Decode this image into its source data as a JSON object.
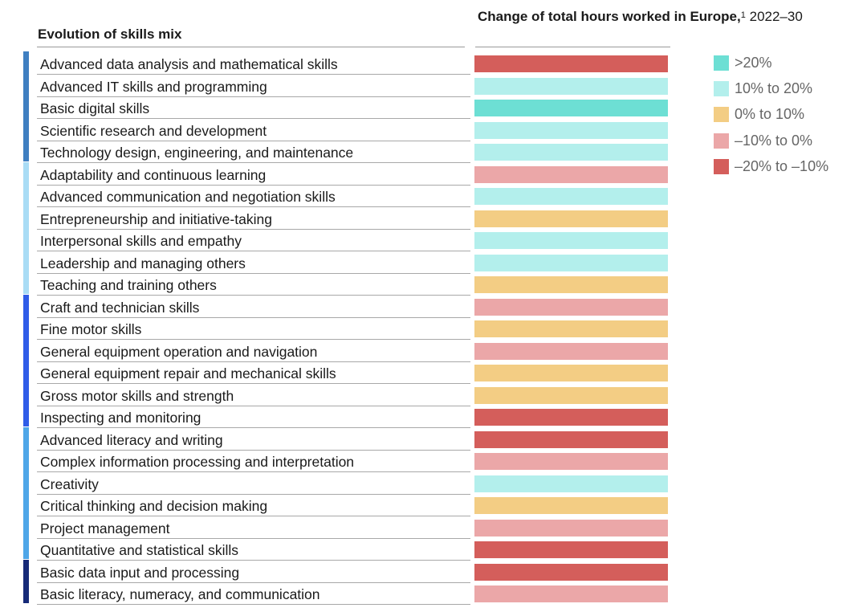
{
  "chart_data": {
    "type": "table",
    "column_headers": {
      "left": "Evolution of skills mix",
      "right_bold": "Change of total hours worked in Europe,",
      "right_footnote": "1",
      "right_period": "2022–30"
    },
    "legend": [
      {
        "key": "gt20",
        "label": ">20%",
        "color": "#6ddfd4"
      },
      {
        "key": "10to20",
        "label": "10% to 20%",
        "color": "#b3efec"
      },
      {
        "key": "0to10",
        "label": "0% to 10%",
        "color": "#f3cd84"
      },
      {
        "key": "m10to0",
        "label": "–10% to 0%",
        "color": "#eba7a8"
      },
      {
        "key": "m20tom10",
        "label": "–20% to –10%",
        "color": "#d45e5b"
      }
    ],
    "groups": [
      {
        "color": "#3f7fc1",
        "count": 5
      },
      {
        "color": "#a9dcf5",
        "count": 6
      },
      {
        "color": "#2f5ce8",
        "count": 6
      },
      {
        "color": "#4ea6e8",
        "count": 6
      },
      {
        "color": "#162a78",
        "count": 2
      }
    ],
    "rows": [
      {
        "label": "Advanced data analysis and mathematical skills",
        "category": "–20% to –10%"
      },
      {
        "label": "Advanced IT skills and programming",
        "category": "10% to 20%"
      },
      {
        "label": "Basic digital skills",
        "category": ">20%"
      },
      {
        "label": "Scientific research and development",
        "category": "10% to 20%"
      },
      {
        "label": "Technology design, engineering, and maintenance",
        "category": "10% to 20%"
      },
      {
        "label": "Adaptability and continuous learning",
        "category": "–10% to 0%"
      },
      {
        "label": "Advanced communication and negotiation skills",
        "category": "10% to 20%"
      },
      {
        "label": "Entrepreneurship and initiative-taking",
        "category": "0% to 10%"
      },
      {
        "label": "Interpersonal skills and empathy",
        "category": "10% to 20%"
      },
      {
        "label": "Leadership and managing others",
        "category": "10% to 20%"
      },
      {
        "label": "Teaching and training others",
        "category": "0% to 10%"
      },
      {
        "label": "Craft and technician skills",
        "category": "–10% to 0%"
      },
      {
        "label": "Fine motor skills",
        "category": "0% to 10%"
      },
      {
        "label": "General equipment operation and navigation",
        "category": "–10% to 0%"
      },
      {
        "label": "General equipment repair and mechanical skills",
        "category": "0% to 10%"
      },
      {
        "label": "Gross motor skills and strength",
        "category": "0% to 10%"
      },
      {
        "label": "Inspecting and monitoring",
        "category": "–20% to –10%"
      },
      {
        "label": "Advanced literacy and writing",
        "category": "–20% to –10%"
      },
      {
        "label": "Complex information processing and interpretation",
        "category": "–10% to 0%"
      },
      {
        "label": "Creativity",
        "category": "10% to 20%"
      },
      {
        "label": "Critical thinking and decision making",
        "category": "0% to 10%"
      },
      {
        "label": "Project management",
        "category": "–10% to 0%"
      },
      {
        "label": "Quantitative and statistical skills",
        "category": "–20% to –10%"
      },
      {
        "label": "Basic data input and processing",
        "category": "–20% to –10%"
      },
      {
        "label": "Basic literacy, numeracy, and communication",
        "category": "–10% to 0%"
      }
    ]
  }
}
